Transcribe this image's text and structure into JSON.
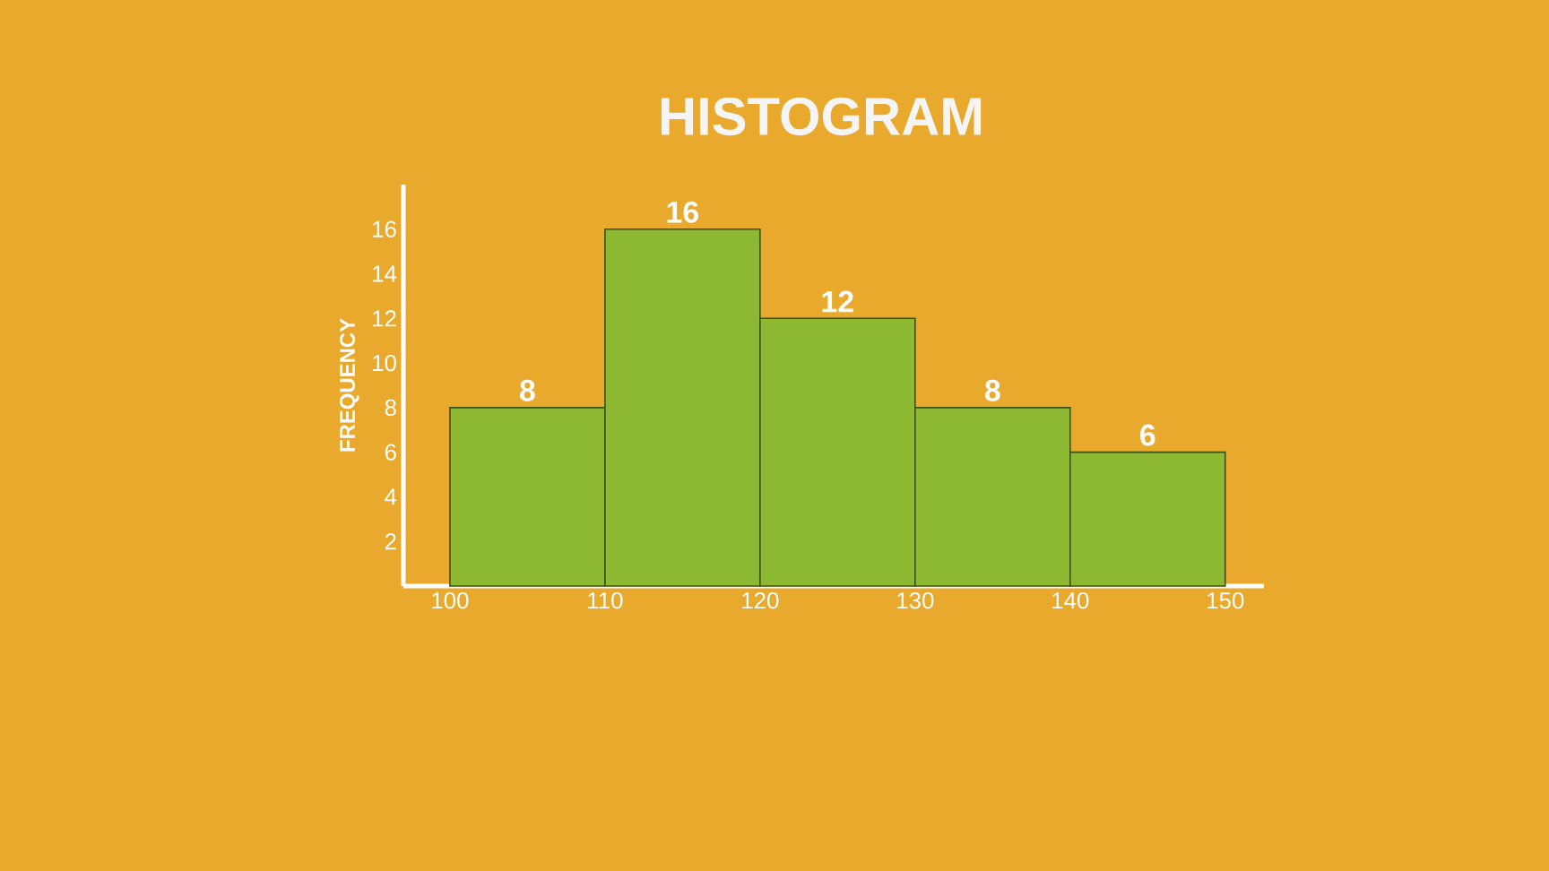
{
  "chart_data": {
    "type": "histogram",
    "title": "HISTOGRAM",
    "ylabel": "FREQUENCY",
    "bins": [
      100,
      110,
      120,
      130,
      140,
      150
    ],
    "values": [
      8,
      16,
      12,
      8,
      6
    ],
    "color": "#8cb832",
    "xlim": [
      97,
      152.5
    ],
    "ylim": [
      0,
      18
    ],
    "xticks": [
      100,
      110,
      120,
      130,
      140,
      150
    ],
    "yticks": [
      2,
      4,
      6,
      8,
      10,
      12,
      14,
      16
    ],
    "data_labels": true
  }
}
